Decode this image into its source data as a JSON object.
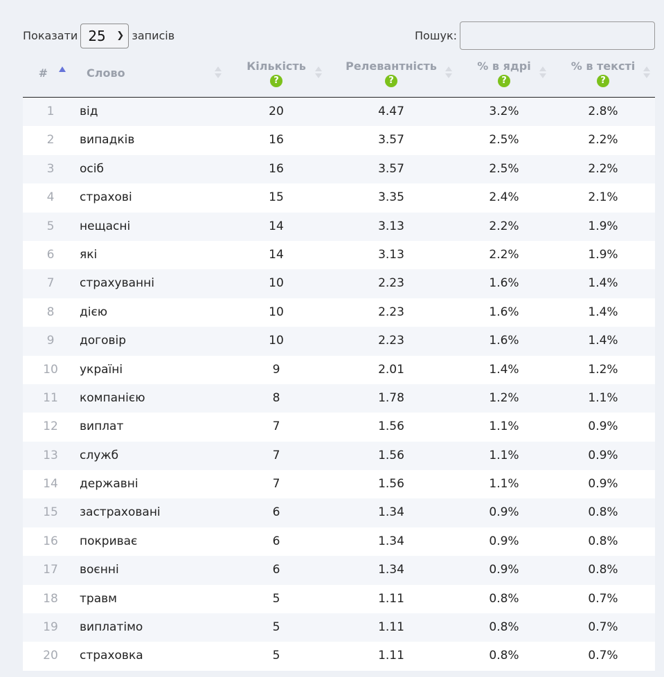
{
  "length_control": {
    "prefix": "Показати",
    "value": "25",
    "suffix": "записів"
  },
  "search": {
    "label": "Пошук:",
    "value": ""
  },
  "columns": [
    {
      "label": "#",
      "sort": "asc"
    },
    {
      "label": "Слово",
      "sort": "none"
    },
    {
      "label": "Кількість",
      "sort": "none",
      "help": "?"
    },
    {
      "label": "Релевантність",
      "sort": "none",
      "help": "?"
    },
    {
      "label": "% в ядрі",
      "sort": "none",
      "help": "?"
    },
    {
      "label": "% в тексті",
      "sort": "none",
      "help": "?"
    }
  ],
  "rows": [
    [
      "1",
      "від",
      "20",
      "4.47",
      "3.2%",
      "2.8%"
    ],
    [
      "2",
      "випадків",
      "16",
      "3.57",
      "2.5%",
      "2.2%"
    ],
    [
      "3",
      "осіб",
      "16",
      "3.57",
      "2.5%",
      "2.2%"
    ],
    [
      "4",
      "страхові",
      "15",
      "3.35",
      "2.4%",
      "2.1%"
    ],
    [
      "5",
      "нещасні",
      "14",
      "3.13",
      "2.2%",
      "1.9%"
    ],
    [
      "6",
      "які",
      "14",
      "3.13",
      "2.2%",
      "1.9%"
    ],
    [
      "7",
      "страхуванні",
      "10",
      "2.23",
      "1.6%",
      "1.4%"
    ],
    [
      "8",
      "дією",
      "10",
      "2.23",
      "1.6%",
      "1.4%"
    ],
    [
      "9",
      "договір",
      "10",
      "2.23",
      "1.6%",
      "1.4%"
    ],
    [
      "10",
      "україні",
      "9",
      "2.01",
      "1.4%",
      "1.2%"
    ],
    [
      "11",
      "компанією",
      "8",
      "1.78",
      "1.2%",
      "1.1%"
    ],
    [
      "12",
      "виплат",
      "7",
      "1.56",
      "1.1%",
      "0.9%"
    ],
    [
      "13",
      "служб",
      "7",
      "1.56",
      "1.1%",
      "0.9%"
    ],
    [
      "14",
      "державні",
      "7",
      "1.56",
      "1.1%",
      "0.9%"
    ],
    [
      "15",
      "застраховані",
      "6",
      "1.34",
      "0.9%",
      "0.8%"
    ],
    [
      "16",
      "покриває",
      "6",
      "1.34",
      "0.9%",
      "0.8%"
    ],
    [
      "17",
      "воєнні",
      "6",
      "1.34",
      "0.9%",
      "0.8%"
    ],
    [
      "18",
      "травм",
      "5",
      "1.11",
      "0.8%",
      "0.7%"
    ],
    [
      "19",
      "виплатімо",
      "5",
      "1.11",
      "0.8%",
      "0.7%"
    ],
    [
      "20",
      "страховка",
      "5",
      "1.11",
      "0.8%",
      "0.7%"
    ]
  ],
  "colors": {
    "help_badge": "#7cc11b",
    "sort_active": "#6674d9",
    "header_text": "#9aa0ab",
    "row_stripe": "#f4f6fa"
  }
}
